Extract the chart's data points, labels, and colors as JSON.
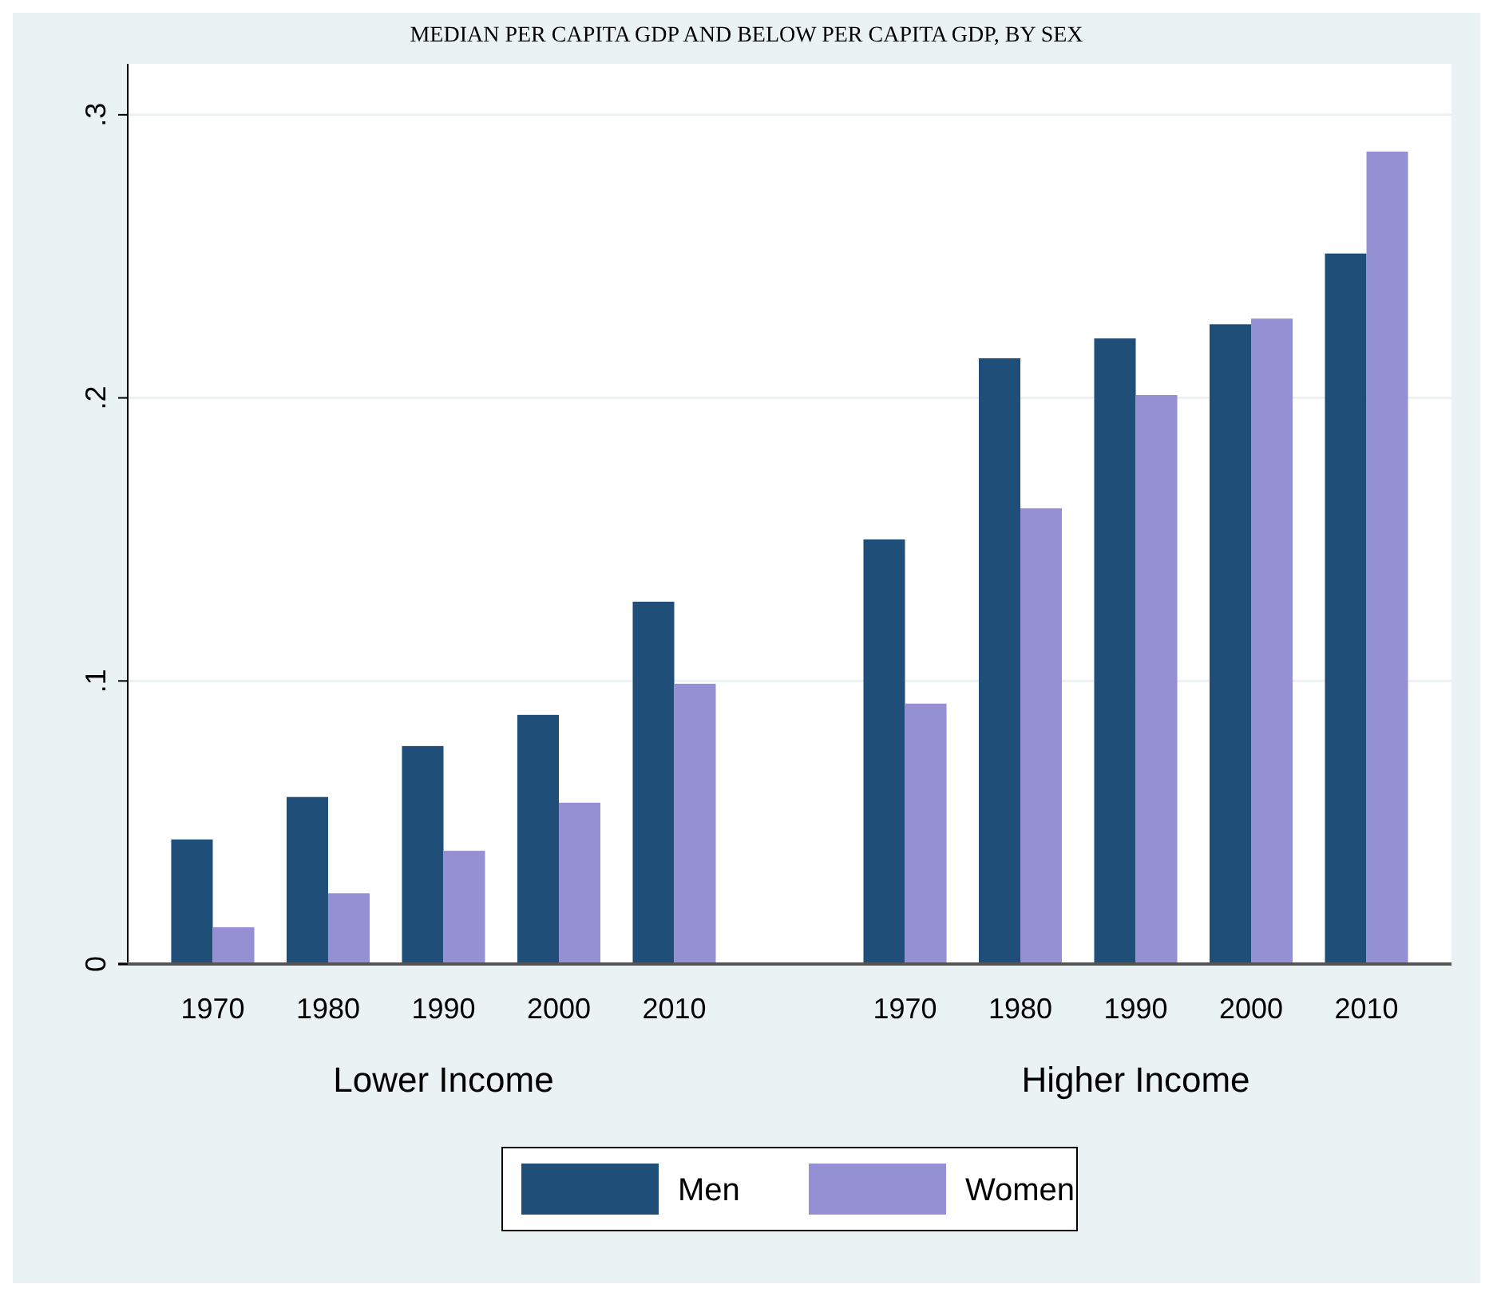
{
  "chart_data": {
    "type": "bar",
    "title": "MEDIAN PER CAPITA GDP AND BELOW PER CAPITA GDP, BY SEX",
    "categories": [
      "1970",
      "1980",
      "1990",
      "2000",
      "2010",
      null,
      "1970",
      "1980",
      "1990",
      "2000",
      "2010"
    ],
    "series": [
      {
        "name": "Men",
        "color": "#1f4e79",
        "values": [
          0.044,
          0.059,
          0.077,
          0.088,
          0.128,
          null,
          0.15,
          0.214,
          0.221,
          0.226,
          0.251
        ]
      },
      {
        "name": "Women",
        "color": "#9590d3",
        "values": [
          0.013,
          0.025,
          0.04,
          0.057,
          0.099,
          null,
          0.092,
          0.161,
          0.201,
          0.228,
          0.287
        ]
      }
    ],
    "annotations": [
      "Lower Income",
      "Higher Income"
    ],
    "ylim": [
      0,
      0.318
    ],
    "yticks": [
      0,
      {
        "value": 0.1,
        "label": ".1"
      },
      {
        "value": 0.2,
        "label": ".2"
      },
      {
        "value": 0.3,
        "label": ".3"
      }
    ],
    "grid": "y",
    "legend": "bottom"
  }
}
